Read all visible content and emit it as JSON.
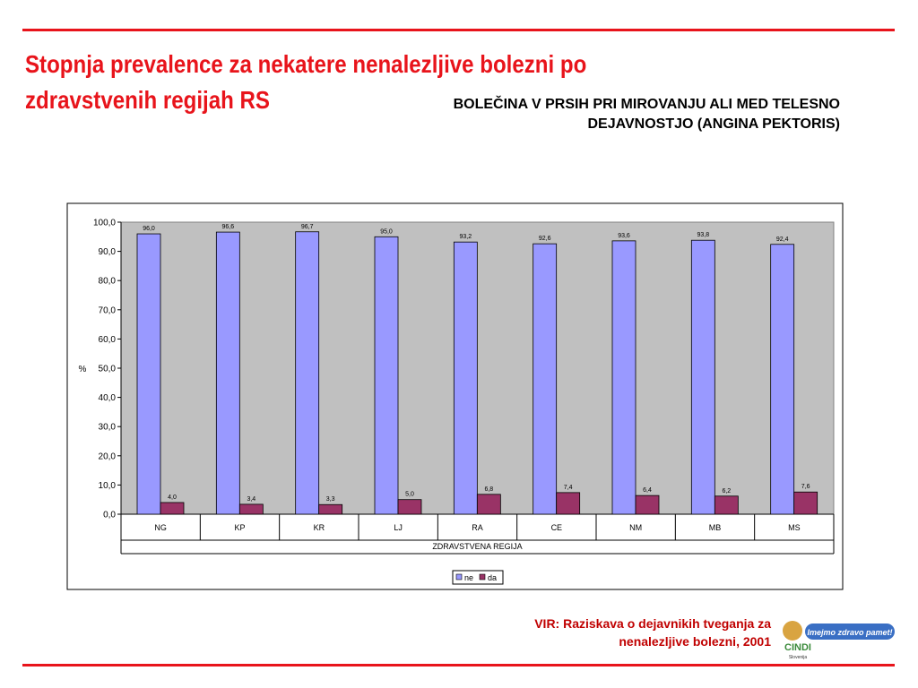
{
  "slide": {
    "title": "Stopnja prevalence za nekatere nenalezljive bolezni po zdravstvenih regijah RS",
    "source": "VIR: Raziskava o dejavnikih tveganja za nenalezljive bolezni, 2001"
  },
  "logo": {
    "slogan": "Imejmo zdravo pamet!",
    "name": "CINDI",
    "country": "Slovenija"
  },
  "chart_data": {
    "type": "bar",
    "title": "BOLEČINA V PRSIH PRI MIROVANJU ALI MED TELESNO DEJAVNOSTJO (ANGINA PEKTORIS)",
    "x_label": "ZDRAVSTVENA REGIJA",
    "y_label": "%",
    "categories": [
      "NG",
      "KP",
      "KR",
      "LJ",
      "RA",
      "CE",
      "NM",
      "MB",
      "MS"
    ],
    "series": [
      {
        "name": "ne",
        "color": "#9999ff",
        "values": [
          96.0,
          96.6,
          96.7,
          95.0,
          93.2,
          92.6,
          93.6,
          93.8,
          92.4
        ],
        "value_labels": [
          "96,0",
          "96,6",
          "96,7",
          "95,0",
          "93,2",
          "92,6",
          "93,6",
          "93,8",
          "92,4"
        ]
      },
      {
        "name": "da",
        "color": "#993366",
        "values": [
          4.0,
          3.4,
          3.3,
          5.0,
          6.8,
          7.4,
          6.4,
          6.2,
          7.6
        ],
        "value_labels": [
          "4,0",
          "3,4",
          "3,3",
          "5,0",
          "6,8",
          "7,4",
          "6,4",
          "6,2",
          "7,6"
        ]
      }
    ],
    "ylim": [
      0,
      100
    ],
    "yticks": [
      {
        "value": 0,
        "label": "0,0"
      },
      {
        "value": 10,
        "label": "10,0"
      },
      {
        "value": 20,
        "label": "20,0"
      },
      {
        "value": 30,
        "label": "30,0"
      },
      {
        "value": 40,
        "label": "40,0"
      },
      {
        "value": 50,
        "label": "50,0"
      },
      {
        "value": 60,
        "label": "60,0"
      },
      {
        "value": 70,
        "label": "70,0"
      },
      {
        "value": 80,
        "label": "80,0"
      },
      {
        "value": 90,
        "label": "90,0"
      },
      {
        "value": 100,
        "label": "100,0"
      }
    ],
    "plot_background": "#c0c0c0",
    "legend": "bottom"
  }
}
